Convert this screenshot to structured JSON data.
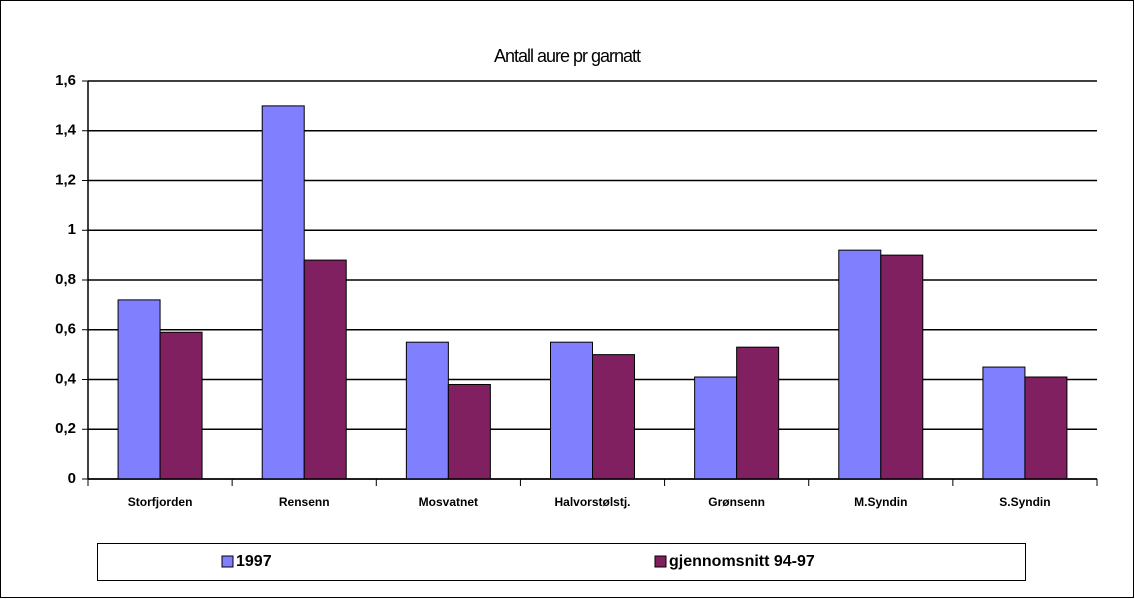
{
  "chart_data": {
    "type": "bar",
    "title": "Antall aure pr garnatt",
    "categories": [
      "Storfjorden",
      "Rensenn",
      "Mosvatnet",
      "Halvorstølstj.",
      "Grønsenn",
      "M.Syndin",
      "S.Syndin"
    ],
    "series": [
      {
        "name": "1997",
        "color": "#8080ff",
        "values": [
          0.72,
          1.5,
          0.55,
          0.55,
          0.41,
          0.92,
          0.45
        ]
      },
      {
        "name": "gjennomsnitt 94-97",
        "color": "#802060",
        "values": [
          0.59,
          0.88,
          0.38,
          0.5,
          0.53,
          0.9,
          0.41
        ]
      }
    ],
    "ylim": [
      0,
      1.6
    ],
    "yticks": [
      0,
      {
        "value": 0.2,
        "label": "0,2"
      },
      {
        "value": 0.4,
        "label": "0,4"
      },
      {
        "value": 0.6,
        "label": "0,6"
      },
      {
        "value": 0.8,
        "label": "0,8"
      },
      1,
      {
        "value": 1.2,
        "label": "1,2"
      },
      {
        "value": 1.4,
        "label": "1,4"
      },
      {
        "value": 1.6,
        "label": "1,6"
      }
    ],
    "grid": true,
    "legend": "bottom"
  }
}
